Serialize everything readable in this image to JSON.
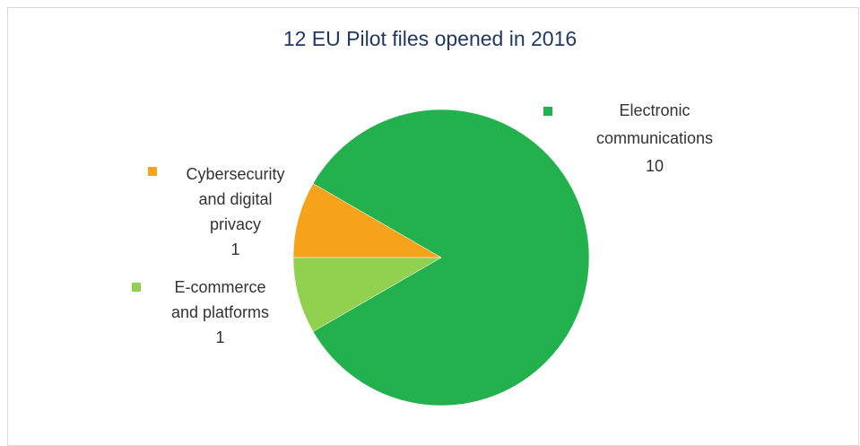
{
  "chart_data": {
    "type": "pie",
    "title": "12 EU Pilot files opened in 2016",
    "categories": [
      "Electronic communications",
      "Cybersecurity and digital privacy",
      "E-commerce and platforms"
    ],
    "values": [
      10,
      1,
      1
    ],
    "colors": [
      "#22b14c",
      "#f7a21b",
      "#92d050"
    ]
  }
}
